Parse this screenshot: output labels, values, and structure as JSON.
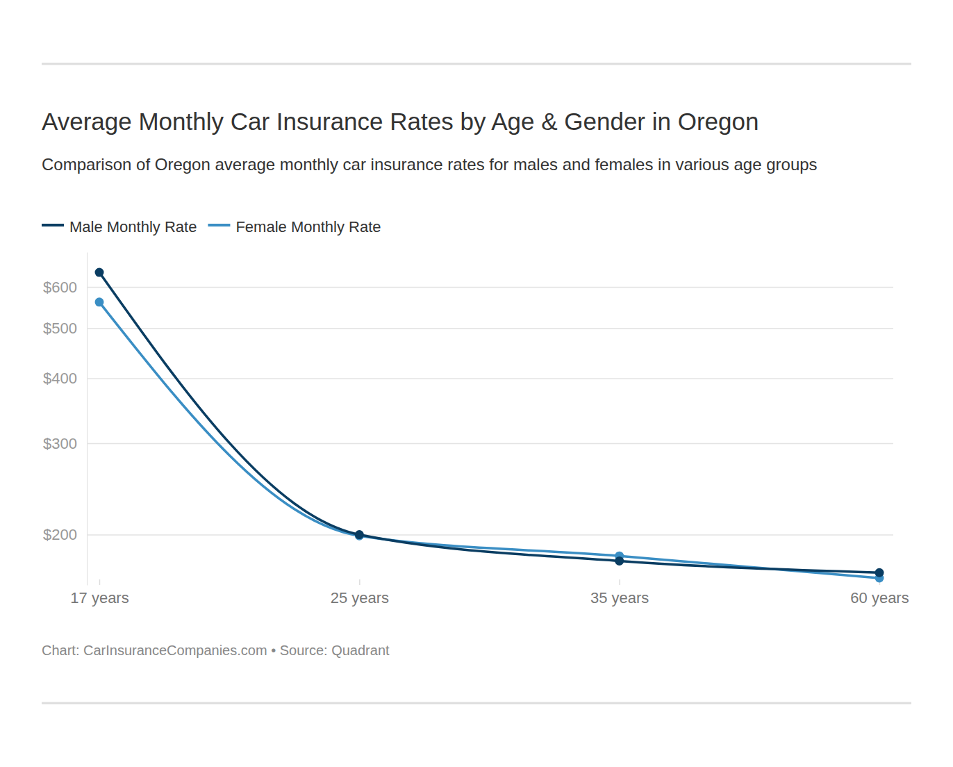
{
  "chart_data": {
    "type": "line",
    "title": "Average Monthly Car Insurance Rates by Age & Gender in Oregon",
    "subtitle": "Comparison of Oregon average monthly car insurance rates for males and females in various age groups",
    "source": "Chart: CarInsuranceCompanies.com • Source: Quadrant",
    "categories": [
      "17 years",
      "25 years",
      "35 years",
      "60 years"
    ],
    "series": [
      {
        "name": "Male Monthly Rate",
        "color": "#0a3d62",
        "marker": "circle",
        "line_style": "solid",
        "values": [
          640,
          200,
          178,
          169
        ]
      },
      {
        "name": "Female Monthly Rate",
        "color": "#3a8ec4",
        "marker": "circle",
        "line_style": "solid",
        "values": [
          561,
          199,
          182,
          165
        ]
      }
    ],
    "ylim": [
      160,
      700
    ],
    "yticks": [
      {
        "value": 200,
        "label": "$200"
      },
      {
        "value": 300,
        "label": "$300"
      },
      {
        "value": 400,
        "label": "$400"
      },
      {
        "value": 500,
        "label": "$500"
      },
      {
        "value": 600,
        "label": "$600"
      }
    ],
    "log": "y",
    "grid": true,
    "legend": "top-left"
  }
}
